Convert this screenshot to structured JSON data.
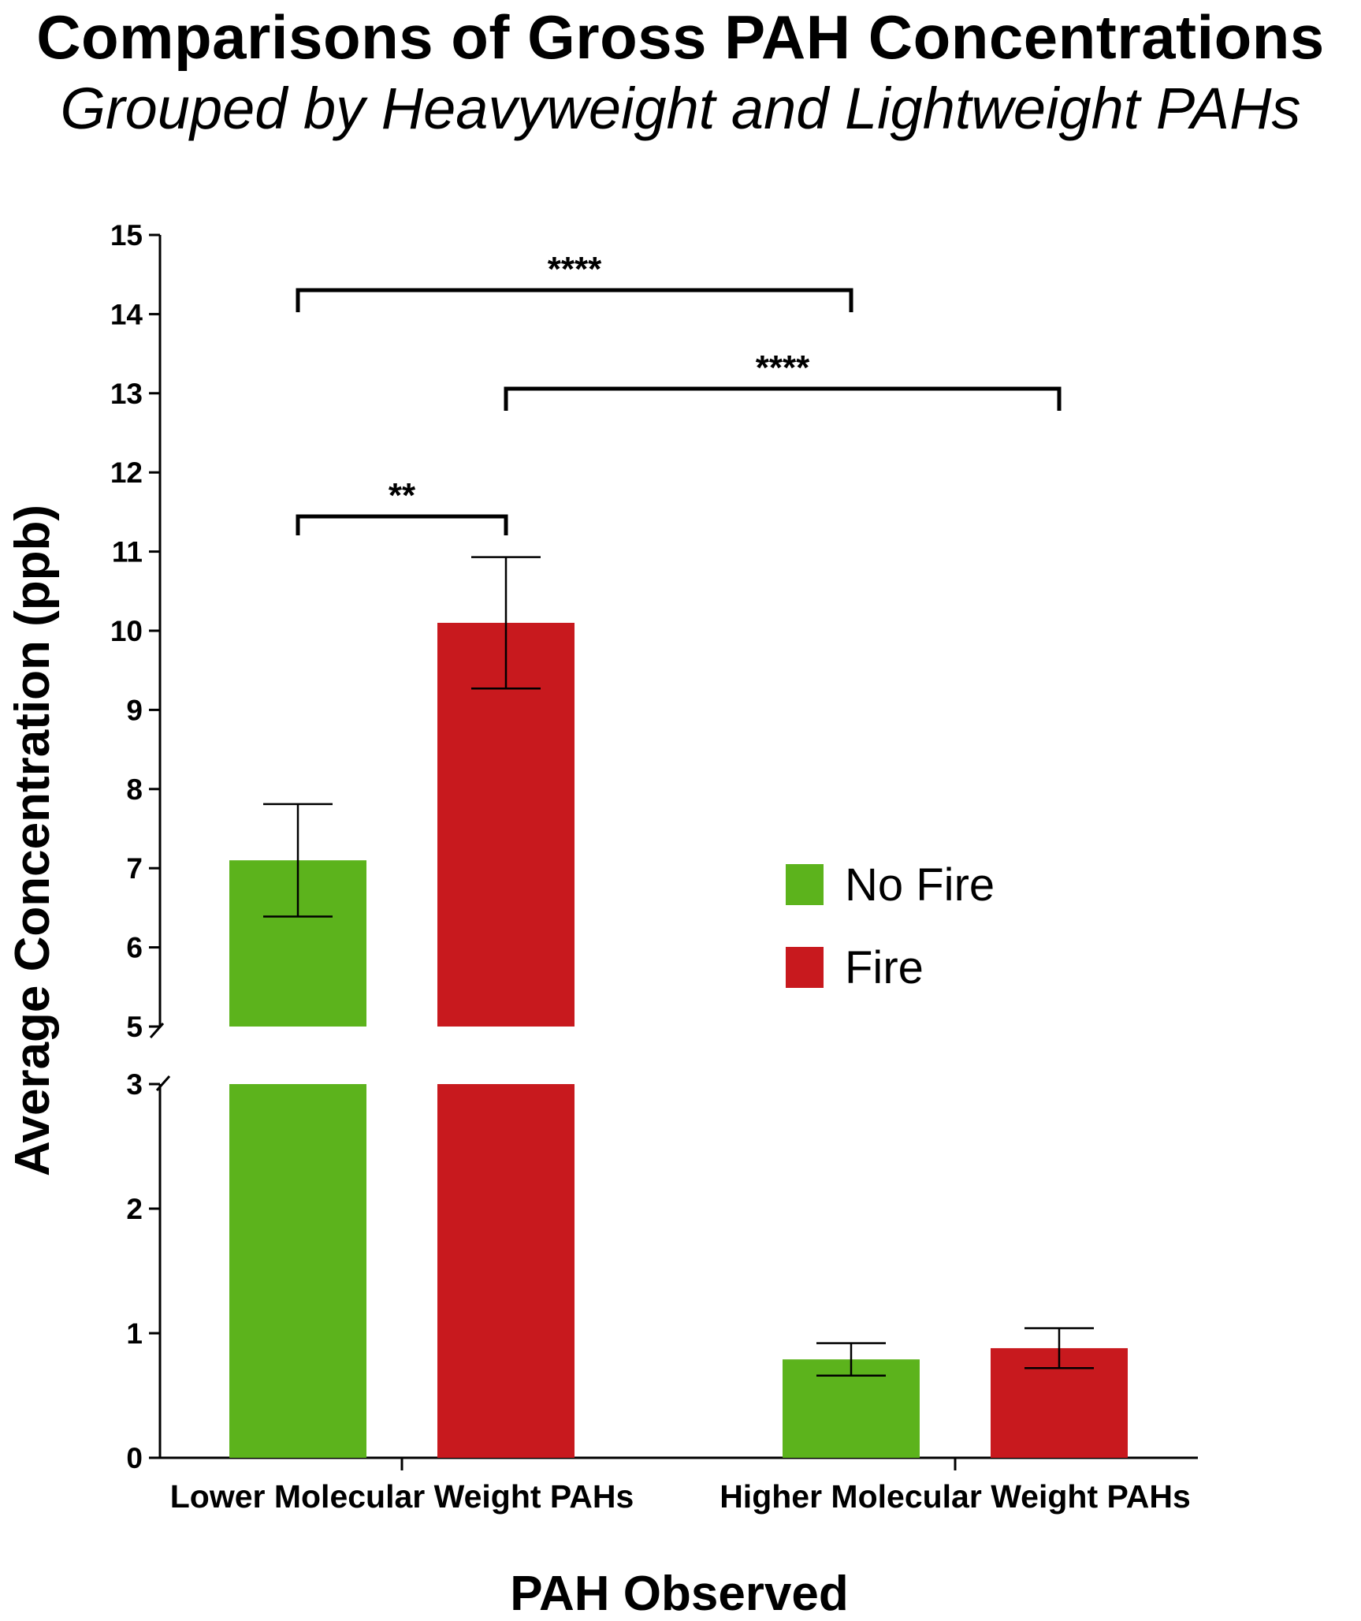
{
  "chart_data": {
    "type": "bar",
    "title": "Comparisons of Gross PAH Concentrations",
    "subtitle": "Grouped by Heavyweight and Lightweight PAHs",
    "xlabel": "PAH Observed",
    "ylabel": "Average Concentration (ppb)",
    "categories": [
      "Lower Molecular Weight PAHs",
      "Higher Molecular Weight PAHs"
    ],
    "series": [
      {
        "name": "No Fire",
        "color": "#5cb31c",
        "values": [
          7.1,
          0.79
        ],
        "error": [
          0.71,
          0.13
        ]
      },
      {
        "name": "Fire",
        "color": "#c8191e",
        "values": [
          10.1,
          0.88
        ],
        "error": [
          0.83,
          0.16
        ]
      }
    ],
    "y_axis_break": {
      "lower_range": [
        0,
        3
      ],
      "upper_range": [
        5,
        15
      ]
    },
    "yticks": [
      0,
      1,
      2,
      3,
      5,
      6,
      7,
      8,
      9,
      10,
      11,
      12,
      13,
      14,
      15
    ],
    "significance": [
      {
        "label": "**",
        "from": "Lower Molecular Weight PAHs / No Fire",
        "to": "Lower Molecular Weight PAHs / Fire"
      },
      {
        "label": "****",
        "from": "Lower Molecular Weight PAHs / No Fire",
        "to": "Higher Molecular Weight PAHs / No Fire"
      },
      {
        "label": "****",
        "from": "Lower Molecular Weight PAHs / Fire",
        "to": "Higher Molecular Weight PAHs / Fire"
      }
    ],
    "legend": {
      "position": "center-right",
      "entries": [
        "No Fire",
        "Fire"
      ]
    },
    "grid": false
  }
}
